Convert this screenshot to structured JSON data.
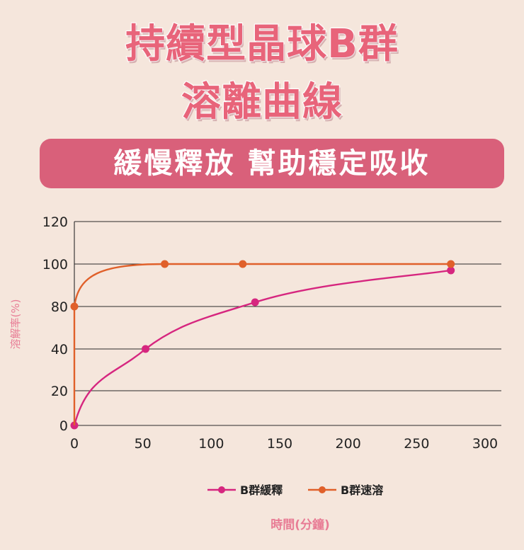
{
  "header": {
    "title_line1": "持續型晶球B群",
    "title_line2": "溶離曲線",
    "banner": "緩慢釋放 幫助穩定吸收"
  },
  "chart_data": {
    "type": "line",
    "ylabel": "溶解率(%)",
    "xlabel": "時間(分鐘)",
    "y_ticks": [
      0,
      20,
      40,
      80,
      100,
      120
    ],
    "x_ticks": [
      0,
      50,
      100,
      150,
      200,
      250,
      300
    ],
    "xlim": [
      0,
      300
    ],
    "grid": "horizontal",
    "legend_position": "bottom",
    "series": [
      {
        "name": "B群緩釋",
        "color": "#d6267f",
        "points": [
          [
            0,
            0
          ],
          [
            52,
            40
          ],
          [
            132,
            82
          ],
          [
            275,
            97
          ]
        ]
      },
      {
        "name": "B群速溶",
        "color": "#e0602a",
        "points": [
          [
            0,
            80
          ],
          [
            66,
            100
          ],
          [
            123,
            100
          ],
          [
            275,
            100
          ]
        ]
      }
    ]
  }
}
